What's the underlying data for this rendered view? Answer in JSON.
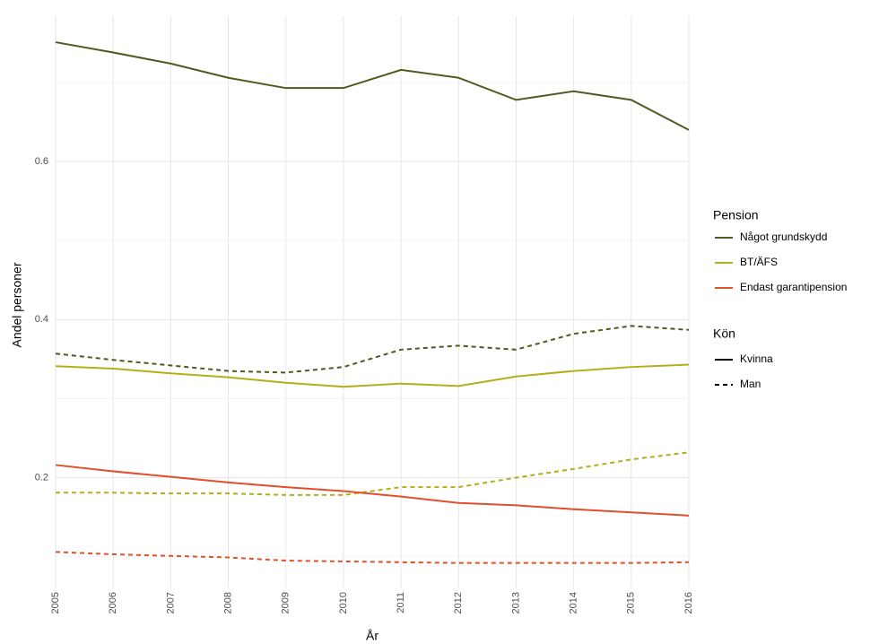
{
  "chart_data": {
    "type": "line",
    "x_label": "År",
    "y_label": "Andel personer",
    "x": [
      2005,
      2006,
      2007,
      2008,
      2009,
      2010,
      2011,
      2012,
      2013,
      2014,
      2015,
      2016
    ],
    "xlim": [
      2005,
      2016
    ],
    "xticks": [
      2005,
      2006,
      2007,
      2008,
      2009,
      2010,
      2011,
      2012,
      2013,
      2014,
      2015,
      2016
    ],
    "ylim": [
      0.061,
      0.784
    ],
    "yticks": [
      0.2,
      0.4,
      0.6
    ],
    "yminor_grid": [
      0.1,
      0.3,
      0.5,
      0.7
    ],
    "grid": true,
    "color_legend_title": "Pension",
    "linetype_legend_title": "Kön",
    "linetypes": [
      {
        "name": "Kvinna",
        "dash": "solid"
      },
      {
        "name": "Man",
        "dash": "dashed"
      }
    ],
    "series": [
      {
        "name": "Något grundskydd",
        "color": "#4f5a1f",
        "lines": [
          {
            "values": [
              0.751,
              0.738,
              0.724,
              0.706,
              0.693,
              0.693,
              0.716,
              0.706,
              0.678,
              0.689,
              0.678,
              0.64
            ]
          },
          {
            "values": [
              0.357,
              0.349,
              0.342,
              0.335,
              0.333,
              0.34,
              0.362,
              0.367,
              0.362,
              0.382,
              0.392,
              0.387
            ]
          }
        ]
      },
      {
        "name": "BT/ÄFS",
        "color": "#b3ae1a",
        "lines": [
          {
            "values": [
              0.341,
              0.338,
              0.332,
              0.327,
              0.32,
              0.315,
              0.319,
              0.316,
              0.328,
              0.335,
              0.34,
              0.343
            ]
          },
          {
            "values": [
              0.181,
              0.181,
              0.18,
              0.18,
              0.178,
              0.178,
              0.188,
              0.188,
              0.2,
              0.211,
              0.223,
              0.232
            ]
          }
        ]
      },
      {
        "name": "Endast garantipension",
        "color": "#e0502a",
        "lines": [
          {
            "values": [
              0.216,
              0.208,
              0.201,
              0.194,
              0.188,
              0.183,
              0.176,
              0.168,
              0.165,
              0.16,
              0.156,
              0.152
            ]
          },
          {
            "values": [
              0.106,
              0.103,
              0.101,
              0.099,
              0.095,
              0.094,
              0.093,
              0.092,
              0.092,
              0.092,
              0.092,
              0.093
            ]
          }
        ]
      }
    ]
  }
}
